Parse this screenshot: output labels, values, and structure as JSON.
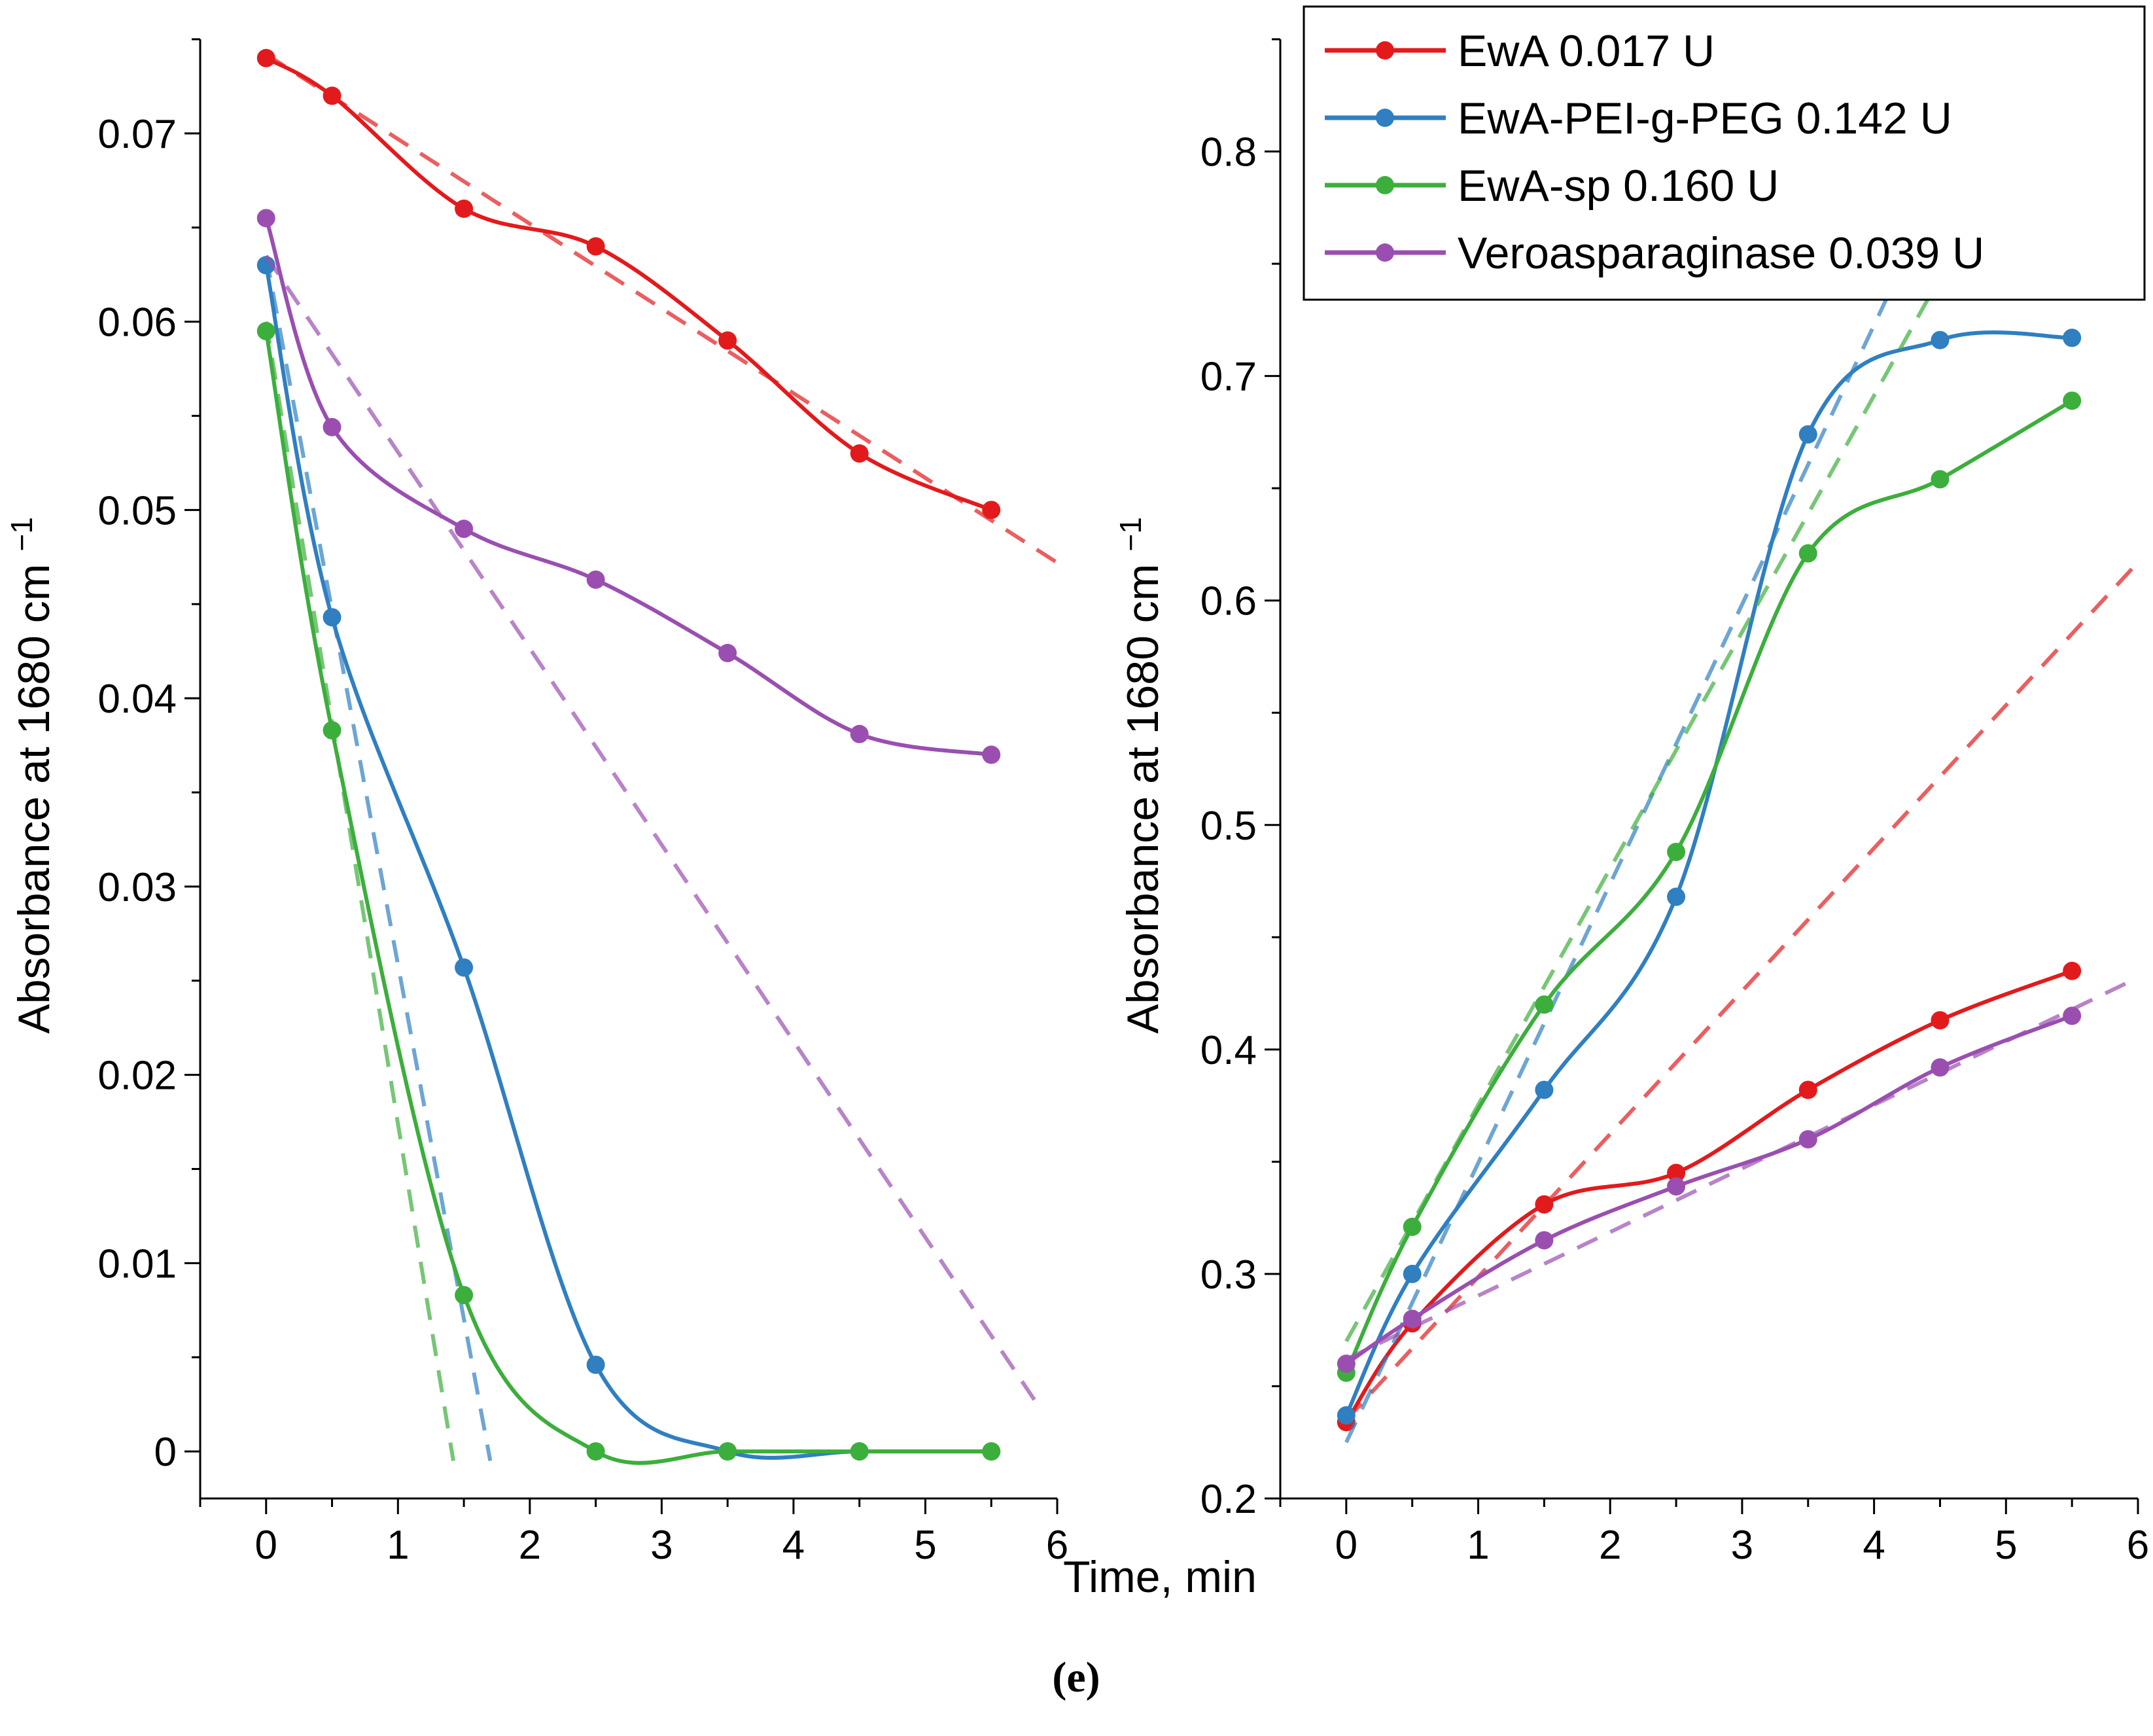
{
  "panel_label": "(e)",
  "x_axis_title": "Time, min",
  "legend": [
    {
      "label": "EwA 0.017 U",
      "color": "#e31a1c"
    },
    {
      "label": "EwA-PEI-g-PEG 0.142 U",
      "color": "#2f7fc1"
    },
    {
      "label": "EwA-sp 0.160 U",
      "color": "#3cae3c"
    },
    {
      "label": "Veroasparaginase 0.039 U",
      "color": "#9a4fb0"
    }
  ],
  "chart_data": [
    {
      "type": "line",
      "name": "left",
      "xlabel": "Time, min",
      "ylabel": "Absorbance at 1680 cm",
      "ylabel_sup": "−1",
      "xlim": [
        -0.5,
        6
      ],
      "ylim": [
        -0.0025,
        0.075
      ],
      "xticks": [
        0,
        1,
        2,
        3,
        4,
        5,
        6
      ],
      "xtick_labels": [
        "0",
        "1",
        "2",
        "3",
        "4",
        "5",
        "6"
      ],
      "yticks": [
        0,
        0.01,
        0.02,
        0.03,
        0.04,
        0.05,
        0.06,
        0.07
      ],
      "ytick_labels": [
        "0",
        "0.01",
        "0.02",
        "0.03",
        "0.04",
        "0.05",
        "0.06",
        "0.07"
      ],
      "x": [
        0,
        0.5,
        1.5,
        2.5,
        3.5,
        4.5,
        5.5
      ],
      "series": [
        {
          "name": "EwA 0.017 U",
          "color": "#e31a1c",
          "values": [
            0.074,
            0.072,
            0.066,
            0.064,
            0.059,
            0.053,
            0.05
          ],
          "fit": [
            [
              0,
              0.0742
            ],
            [
              6,
              0.0472
            ]
          ]
        },
        {
          "name": "EwA-PEI-g-PEG 0.142 U",
          "color": "#2f7fc1",
          "values": [
            0.063,
            0.0443,
            0.0257,
            0.0046,
            0,
            0,
            0
          ],
          "fit": [
            [
              0,
              0.0635
            ],
            [
              1.7,
              -0.0005
            ]
          ]
        },
        {
          "name": "EwA-sp 0.160 U",
          "color": "#3cae3c",
          "values": [
            0.0595,
            0.0383,
            0.0083,
            0,
            0,
            0,
            0
          ],
          "fit": [
            [
              0,
              0.06
            ],
            [
              1.42,
              -0.0005
            ]
          ]
        },
        {
          "name": "Veroasparaginase 0.039 U",
          "color": "#9a4fb0",
          "values": [
            0.0655,
            0.0544,
            0.049,
            0.0463,
            0.0424,
            0.0381,
            0.037
          ],
          "fit": [
            [
              0,
              0.0635
            ],
            [
              5.85,
              0.0025
            ]
          ]
        }
      ]
    },
    {
      "type": "line",
      "name": "right",
      "xlabel": "Time, min",
      "ylabel": "Absorbance at 1680 cm",
      "ylabel_sup": "−1",
      "xlim": [
        -0.5,
        6
      ],
      "ylim": [
        0.2,
        0.85
      ],
      "xticks": [
        0,
        1,
        2,
        3,
        4,
        5,
        6
      ],
      "xtick_labels": [
        "0",
        "1",
        "2",
        "3",
        "4",
        "5",
        "6"
      ],
      "yticks": [
        0.2,
        0.3,
        0.4,
        0.5,
        0.6,
        0.7,
        0.8
      ],
      "ytick_labels": [
        "0.2",
        "0.3",
        "0.4",
        "0.5",
        "0.6",
        "0.7",
        "0.8"
      ],
      "x": [
        0,
        0.5,
        1.5,
        2.5,
        3.5,
        4.5,
        5.5
      ],
      "series": [
        {
          "name": "EwA 0.017 U",
          "color": "#e31a1c",
          "values": [
            0.234,
            0.278,
            0.331,
            0.345,
            0.382,
            0.413,
            0.435
          ],
          "fit": [
            [
              0,
              0.235
            ],
            [
              6,
              0.617
            ]
          ]
        },
        {
          "name": "EwA-PEI-g-PEG 0.142 U",
          "color": "#2f7fc1",
          "values": [
            0.237,
            0.3,
            0.382,
            0.468,
            0.674,
            0.716,
            0.717
          ],
          "fit": [
            [
              0,
              0.225
            ],
            [
              4.3,
              0.76
            ]
          ]
        },
        {
          "name": "EwA-sp 0.160 U",
          "color": "#3cae3c",
          "values": [
            0.256,
            0.321,
            0.42,
            0.488,
            0.621,
            0.654,
            0.689
          ],
          "fit": [
            [
              0,
              0.27
            ],
            [
              4.7,
              0.765
            ]
          ]
        },
        {
          "name": "Veroasparaginase 0.039 U",
          "color": "#9a4fb0",
          "values": [
            0.26,
            0.28,
            0.315,
            0.339,
            0.36,
            0.392,
            0.415
          ],
          "fit": [
            [
              0,
              0.262
            ],
            [
              6,
              0.432
            ]
          ]
        }
      ]
    }
  ]
}
